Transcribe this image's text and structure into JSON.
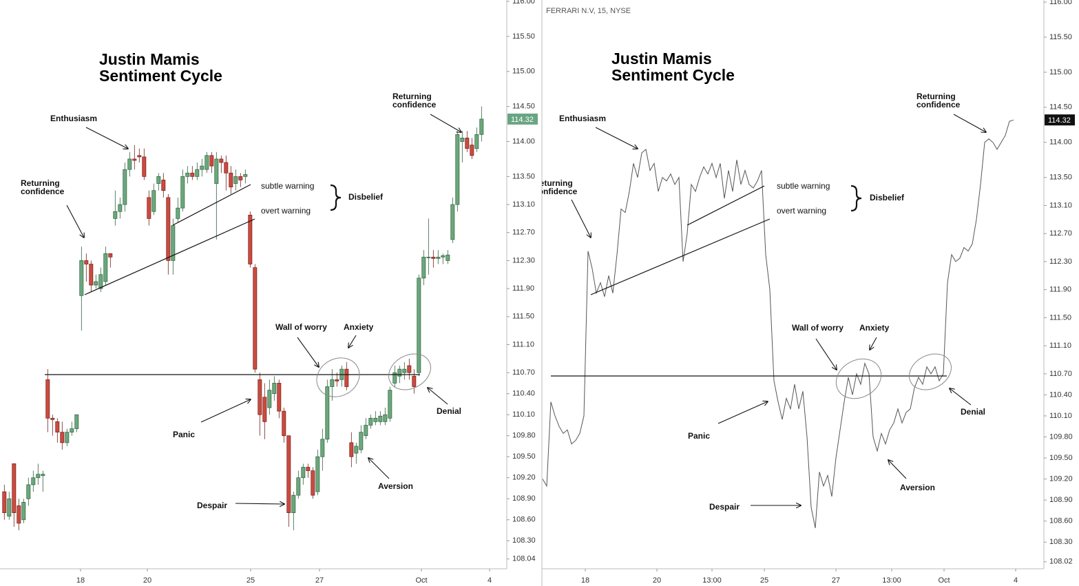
{
  "chart_data": [
    {
      "type": "candlestick",
      "title": [
        "Justin Mamis",
        "Sentiment Cycle"
      ],
      "open": [
        109.0,
        108.65,
        109.4,
        108.8,
        108.6,
        108.9,
        109.1,
        109.2,
        109.23,
        110.6,
        110.05,
        110.0,
        109.85,
        109.7,
        109.85,
        109.9,
        111.8,
        112.3,
        112.25,
        111.95,
        111.9,
        112.0,
        112.4,
        112.9,
        113.0,
        113.1,
        113.6,
        113.75,
        113.8,
        113.78,
        113.2,
        113.0,
        113.4,
        113.45,
        113.2,
        112.3,
        112.9,
        113.05,
        113.5,
        113.55,
        113.5,
        113.6,
        113.6,
        113.8,
        113.4,
        113.75,
        113.7,
        113.55,
        113.4,
        113.5,
        113.5,
        112.95,
        112.2,
        110.6,
        110.35,
        110.2,
        110.4,
        110.55,
        110.15,
        109.8,
        108.7,
        108.95,
        109.2,
        109.35,
        109.3,
        109.0,
        109.5,
        109.75,
        110.5,
        110.6,
        110.6,
        110.75,
        109.7,
        109.55,
        109.6,
        109.8,
        109.95,
        110.0,
        110.0,
        110.0,
        110.05,
        110.55,
        110.65,
        110.7,
        110.8,
        110.65,
        110.7,
        112.05,
        112.35,
        112.35,
        112.33,
        112.35,
        112.3,
        112.6,
        113.1,
        114.0,
        114.05,
        113.95,
        113.9,
        114.1
      ],
      "high": [
        109.1,
        109.0,
        109.4,
        108.9,
        108.9,
        109.2,
        109.3,
        109.4,
        109.3,
        110.75,
        110.1,
        110.05,
        110.0,
        109.9,
        110.0,
        110.1,
        112.5,
        112.4,
        112.3,
        112.1,
        112.2,
        112.5,
        112.4,
        113.3,
        113.2,
        113.7,
        113.85,
        113.95,
        113.9,
        113.9,
        113.3,
        113.4,
        113.55,
        113.55,
        113.25,
        112.9,
        113.2,
        113.6,
        113.65,
        113.65,
        113.7,
        113.75,
        113.85,
        113.85,
        113.85,
        113.8,
        113.8,
        113.65,
        113.6,
        113.55,
        113.6,
        113.0,
        112.25,
        110.7,
        110.55,
        110.6,
        110.65,
        110.6,
        110.2,
        109.8,
        109.0,
        109.3,
        109.4,
        109.4,
        109.35,
        109.6,
        109.9,
        110.6,
        110.75,
        110.7,
        110.8,
        110.85,
        109.85,
        109.7,
        109.95,
        110.05,
        110.1,
        110.15,
        110.15,
        110.2,
        110.5,
        110.8,
        110.8,
        110.85,
        110.9,
        110.75,
        112.1,
        112.45,
        112.9,
        112.45,
        112.45,
        112.4,
        112.45,
        113.2,
        114.15,
        114.15,
        114.15,
        114.05,
        114.2,
        114.5
      ],
      "low": [
        108.6,
        108.6,
        108.5,
        108.45,
        108.55,
        108.8,
        109.0,
        109.1,
        109.0,
        109.85,
        109.8,
        109.7,
        109.6,
        109.65,
        109.8,
        109.85,
        111.3,
        112.0,
        111.85,
        111.9,
        111.85,
        111.95,
        112.2,
        112.8,
        112.9,
        113.0,
        113.5,
        113.6,
        113.7,
        113.45,
        112.8,
        112.95,
        113.3,
        113.2,
        112.1,
        112.1,
        112.85,
        113.0,
        113.4,
        113.45,
        113.45,
        113.5,
        113.55,
        113.55,
        112.6,
        113.55,
        113.3,
        113.25,
        113.3,
        113.35,
        113.4,
        112.2,
        110.7,
        109.8,
        109.75,
        110.1,
        110.3,
        110.05,
        109.7,
        108.5,
        108.45,
        108.9,
        109.1,
        109.2,
        108.9,
        108.95,
        109.3,
        109.7,
        110.3,
        110.5,
        110.5,
        110.45,
        109.35,
        109.4,
        109.55,
        109.75,
        109.9,
        109.95,
        109.95,
        109.95,
        110.0,
        110.5,
        110.55,
        110.6,
        110.6,
        110.4,
        110.65,
        111.95,
        112.1,
        112.2,
        112.25,
        112.25,
        112.25,
        112.55,
        113.0,
        113.7,
        113.85,
        113.75,
        113.85,
        114.0
      ],
      "close": [
        108.7,
        108.9,
        108.7,
        108.55,
        108.85,
        109.1,
        109.2,
        109.25,
        109.25,
        110.05,
        110.03,
        109.85,
        109.7,
        109.85,
        109.9,
        110.1,
        112.3,
        112.25,
        111.95,
        112.0,
        112.1,
        112.4,
        112.35,
        113.0,
        113.1,
        113.6,
        113.75,
        113.73,
        113.78,
        113.5,
        112.9,
        113.3,
        113.5,
        113.3,
        112.3,
        112.8,
        113.05,
        113.5,
        113.55,
        113.5,
        113.6,
        113.65,
        113.8,
        113.65,
        113.75,
        113.7,
        113.55,
        113.35,
        113.5,
        113.45,
        113.53,
        112.25,
        110.75,
        110.1,
        110.0,
        110.45,
        110.55,
        110.15,
        109.8,
        108.7,
        108.95,
        109.2,
        109.35,
        109.3,
        108.95,
        109.5,
        109.75,
        110.5,
        110.6,
        110.58,
        110.75,
        110.5,
        109.5,
        109.65,
        109.85,
        109.95,
        110.05,
        110.05,
        110.08,
        110.1,
        110.45,
        110.7,
        110.75,
        110.75,
        110.7,
        110.5,
        112.05,
        112.35,
        112.35,
        112.33,
        112.35,
        112.37,
        112.38,
        113.1,
        114.1,
        114.05,
        113.9,
        113.8,
        114.1,
        114.32
      ],
      "color_up": "#6aa87b",
      "color_down": "#cc4a3f",
      "ylim": [
        107.9,
        116.02
      ],
      "yticks": [
        {
          "value": 116,
          "label": "116.00"
        },
        {
          "value": 115.5,
          "label": "115.50"
        },
        {
          "value": 115,
          "label": "115.00"
        },
        {
          "value": 114.5,
          "label": "114.50"
        },
        {
          "value": 114,
          "label": "114.00"
        },
        {
          "value": 113.5,
          "label": "113.50"
        },
        {
          "value": 113.1,
          "label": "113.10"
        },
        {
          "value": 112.7,
          "label": "112.70"
        },
        {
          "value": 112.3,
          "label": "112.30"
        },
        {
          "value": 111.9,
          "label": "111.90"
        },
        {
          "value": 111.5,
          "label": "111.50"
        },
        {
          "value": 111.1,
          "label": "111.10"
        },
        {
          "value": 110.7,
          "label": "110.70"
        },
        {
          "value": 110.4,
          "label": "110.40"
        },
        {
          "value": 110.1,
          "label": "110.10"
        },
        {
          "value": 109.8,
          "label": "109.80"
        },
        {
          "value": 109.5,
          "label": "109.50"
        },
        {
          "value": 109.2,
          "label": "109.20"
        },
        {
          "value": 108.9,
          "label": "108.90"
        },
        {
          "value": 108.6,
          "label": "108.60"
        },
        {
          "value": 108.3,
          "label": "108.30"
        },
        {
          "value": 108.04,
          "label": "108.04"
        }
      ],
      "xlim": [
        -0.9,
        104.24
      ],
      "xticks": [
        {
          "value": 15.81,
          "label": "18"
        },
        {
          "value": 29.67,
          "label": "20"
        },
        {
          "value": 51.1,
          "label": "25"
        },
        {
          "value": 65.39,
          "label": "27"
        },
        {
          "value": 86.53,
          "label": "Oct"
        },
        {
          "value": 100.67,
          "label": "4"
        }
      ],
      "last_price": 114.32,
      "last_price_color": "#6aa583",
      "annotations": [
        {
          "lines": [
            "Returning",
            "confidence"
          ]
        },
        {
          "lines": [
            "Enthusiasm"
          ]
        },
        {
          "lines": [
            "subtle warning"
          ]
        },
        {
          "lines": [
            "overt warning"
          ]
        },
        {
          "lines": [
            "Disbelief"
          ]
        },
        {
          "lines": [
            "Wall of worry"
          ]
        },
        {
          "lines": [
            "Anxiety"
          ]
        },
        {
          "lines": [
            "Panic"
          ]
        },
        {
          "lines": [
            "Despair"
          ]
        },
        {
          "lines": [
            "Aversion"
          ]
        },
        {
          "lines": [
            "Denial"
          ]
        },
        {
          "lines": [
            "Returning",
            "confidence"
          ]
        }
      ]
    },
    {
      "type": "line",
      "header": "FERRARI N.V, 15, NYSE",
      "title": [
        "Justin Mamis",
        "Sentiment Cycle"
      ],
      "values": [
        109.2,
        109.1,
        110.3,
        110.1,
        109.95,
        109.85,
        109.9,
        109.7,
        109.75,
        109.85,
        110.1,
        112.45,
        112.2,
        111.85,
        112.0,
        111.8,
        112.1,
        111.85,
        112.4,
        113.05,
        113.0,
        113.3,
        113.7,
        113.5,
        113.85,
        113.9,
        113.6,
        113.7,
        113.3,
        113.5,
        113.45,
        113.55,
        113.4,
        113.5,
        112.3,
        112.7,
        113.4,
        113.3,
        113.5,
        113.65,
        113.55,
        113.7,
        113.5,
        113.7,
        113.2,
        113.6,
        113.3,
        113.75,
        113.4,
        113.6,
        113.4,
        113.35,
        113.45,
        113.6,
        112.4,
        111.9,
        110.6,
        110.3,
        110.05,
        110.35,
        110.2,
        110.55,
        110.2,
        110.45,
        109.8,
        108.8,
        108.5,
        109.3,
        109.1,
        109.25,
        108.95,
        109.5,
        109.9,
        110.3,
        110.65,
        110.4,
        110.7,
        110.55,
        110.85,
        110.7,
        109.8,
        109.6,
        109.85,
        109.7,
        109.9,
        110.0,
        110.2,
        110.0,
        110.15,
        110.2,
        110.5,
        110.65,
        110.55,
        110.8,
        110.7,
        110.8,
        110.6,
        110.7,
        112.0,
        112.4,
        112.3,
        112.35,
        112.5,
        112.45,
        112.55,
        112.9,
        113.4,
        114.0,
        114.05,
        114.0,
        113.9,
        114.0,
        114.1,
        114.3,
        114.32
      ],
      "color": "#555555",
      "ylim": [
        107.92,
        116.03
      ],
      "yticks": [
        {
          "value": 116,
          "label": "116.00"
        },
        {
          "value": 115.5,
          "label": "115.50"
        },
        {
          "value": 115,
          "label": "115.00"
        },
        {
          "value": 114.5,
          "label": "114.50"
        },
        {
          "value": 114,
          "label": "114.00"
        },
        {
          "value": 113.5,
          "label": "113.50"
        },
        {
          "value": 113.1,
          "label": "113.10"
        },
        {
          "value": 112.7,
          "label": "112.70"
        },
        {
          "value": 112.3,
          "label": "112.30"
        },
        {
          "value": 111.9,
          "label": "111.90"
        },
        {
          "value": 111.5,
          "label": "111.50"
        },
        {
          "value": 111.1,
          "label": "111.10"
        },
        {
          "value": 110.7,
          "label": "110.70"
        },
        {
          "value": 110.4,
          "label": "110.40"
        },
        {
          "value": 110.1,
          "label": "110.10"
        },
        {
          "value": 109.8,
          "label": "109.80"
        },
        {
          "value": 109.5,
          "label": "109.50"
        },
        {
          "value": 109.2,
          "label": "109.20"
        },
        {
          "value": 108.9,
          "label": "108.90"
        },
        {
          "value": 108.6,
          "label": "108.60"
        },
        {
          "value": 108.3,
          "label": "108.30"
        },
        {
          "value": 108.02,
          "label": "108.02"
        }
      ],
      "xlim": [
        -0.17,
        121.33
      ],
      "xticks": [
        {
          "value": 10.33,
          "label": "18"
        },
        {
          "value": 27.67,
          "label": "20"
        },
        {
          "value": 41,
          "label": "13:00"
        },
        {
          "value": 53.67,
          "label": "25"
        },
        {
          "value": 71,
          "label": "27"
        },
        {
          "value": 84.5,
          "label": "13:00"
        },
        {
          "value": 97.17,
          "label": "Oct"
        },
        {
          "value": 114.5,
          "label": "4"
        }
      ],
      "last_price": 114.32,
      "last_price_color": "#111111",
      "annotations": [
        {
          "lines": [
            "Returning",
            "confidence"
          ]
        },
        {
          "lines": [
            "Enthusiasm"
          ]
        },
        {
          "lines": [
            "subtle warning"
          ]
        },
        {
          "lines": [
            "overt warning"
          ]
        },
        {
          "lines": [
            "Disbelief"
          ]
        },
        {
          "lines": [
            "Wall of worry"
          ]
        },
        {
          "lines": [
            "Anxiety"
          ]
        },
        {
          "lines": [
            "Panic"
          ]
        },
        {
          "lines": [
            "Despair"
          ]
        },
        {
          "lines": [
            "Aversion"
          ]
        },
        {
          "lines": [
            "Denial"
          ]
        },
        {
          "lines": [
            "Returning",
            "confidence"
          ]
        }
      ]
    }
  ]
}
